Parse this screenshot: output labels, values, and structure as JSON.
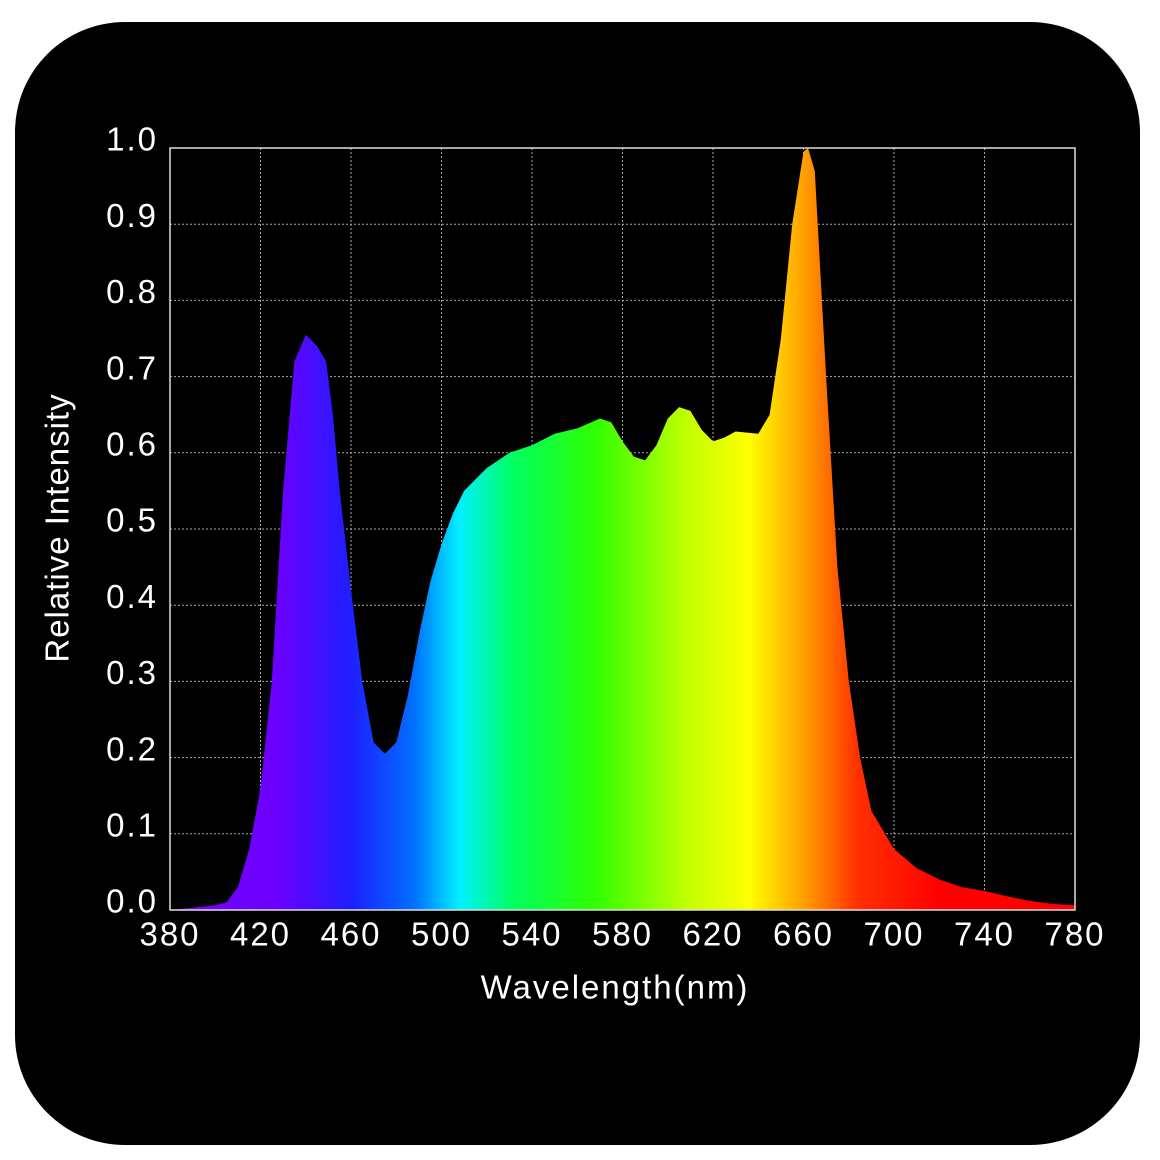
{
  "chart_data": {
    "type": "area",
    "x_label": "Wavelength(nm)",
    "y_label": "Relative Intensity",
    "x": [
      380,
      390,
      400,
      405,
      410,
      415,
      420,
      425,
      430,
      435,
      440,
      445,
      449,
      452,
      455,
      460,
      465,
      470,
      475,
      480,
      485,
      490,
      495,
      500,
      505,
      510,
      520,
      530,
      540,
      550,
      560,
      570,
      575,
      580,
      585,
      590,
      595,
      600,
      605,
      610,
      615,
      620,
      625,
      630,
      640,
      645,
      650,
      655,
      660,
      662,
      665,
      670,
      675,
      680,
      685,
      690,
      700,
      710,
      720,
      730,
      740,
      750,
      760,
      770,
      780
    ],
    "values": [
      0.0,
      0.003,
      0.006,
      0.01,
      0.03,
      0.08,
      0.16,
      0.3,
      0.55,
      0.72,
      0.755,
      0.74,
      0.72,
      0.65,
      0.55,
      0.42,
      0.3,
      0.22,
      0.205,
      0.22,
      0.28,
      0.36,
      0.43,
      0.48,
      0.52,
      0.55,
      0.58,
      0.6,
      0.61,
      0.625,
      0.632,
      0.645,
      0.64,
      0.615,
      0.595,
      0.59,
      0.61,
      0.645,
      0.66,
      0.655,
      0.63,
      0.615,
      0.62,
      0.628,
      0.625,
      0.65,
      0.75,
      0.9,
      0.995,
      1.0,
      0.97,
      0.7,
      0.45,
      0.3,
      0.2,
      0.13,
      0.08,
      0.055,
      0.04,
      0.03,
      0.025,
      0.018,
      0.012,
      0.008,
      0.006
    ],
    "xlim": [
      380,
      780
    ],
    "ylim": [
      0,
      1
    ],
    "xticks": [
      380,
      420,
      460,
      500,
      540,
      580,
      620,
      660,
      700,
      740,
      780
    ],
    "yticks": [
      {
        "value": 0,
        "label": "0.0"
      },
      0.1,
      0.2,
      0.3,
      0.4,
      0.5,
      0.6,
      0.7,
      0.8,
      0.9,
      {
        "value": 1,
        "label": "1.0"
      }
    ],
    "grid": true
  }
}
